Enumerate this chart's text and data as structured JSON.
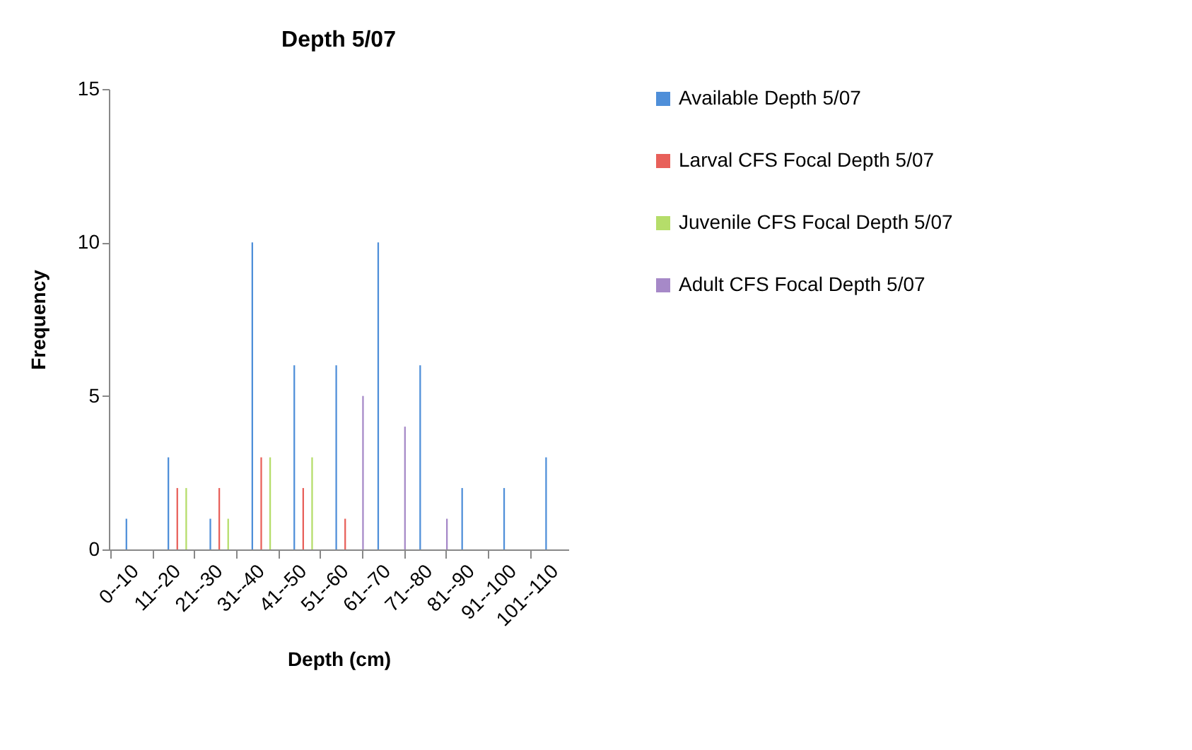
{
  "chart_data": {
    "type": "bar",
    "title": "Depth 5/07",
    "xlabel": "Depth (cm)",
    "ylabel": "Frequency",
    "categories": [
      "0--10",
      "11--20",
      "21--30",
      "31--40",
      "41--50",
      "51--60",
      "61--70",
      "71--80",
      "81--90",
      "91--100",
      "101--110"
    ],
    "series": [
      {
        "name": "Available Depth 5/07",
        "color": "#4f8fd9",
        "values": [
          1,
          3,
          1,
          10,
          6,
          6,
          10,
          6,
          2,
          2,
          3
        ]
      },
      {
        "name": "Larval CFS Focal Depth 5/07",
        "color": "#e8605a",
        "values": [
          0,
          2,
          2,
          3,
          2,
          1,
          0,
          0,
          0,
          0,
          0
        ]
      },
      {
        "name": "Juvenile CFS Focal Depth 5/07",
        "color": "#b5dd6a",
        "values": [
          0,
          2,
          1,
          3,
          3,
          0,
          0,
          0,
          0,
          0,
          0
        ]
      },
      {
        "name": "Adult CFS Focal Depth 5/07",
        "color": "#a689c8",
        "values": [
          0,
          0,
          0,
          0,
          0,
          5,
          4,
          1,
          0,
          0,
          0
        ]
      }
    ],
    "ylim": [
      0,
      15
    ],
    "yticks": [
      0,
      5,
      10,
      15
    ],
    "grid": false,
    "legend": "right"
  }
}
